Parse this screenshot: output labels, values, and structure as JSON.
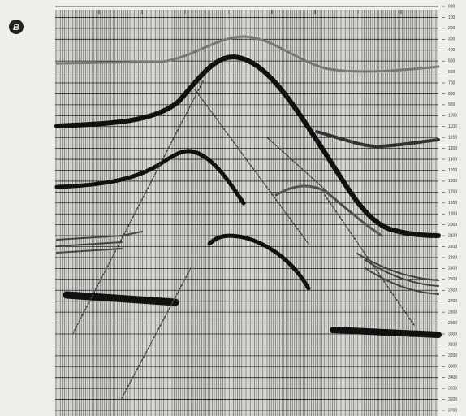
{
  "figure_label": "B",
  "depth_labels": [
    "000",
    "100",
    "200",
    "300",
    "400",
    "500",
    "600",
    "700",
    "800",
    "900",
    "1000",
    "1100",
    "1200",
    "1300",
    "1400",
    "1500",
    "1600",
    "1700",
    "1800",
    "1900",
    "2000",
    "2100",
    "2200",
    "2300",
    "2400",
    "2500",
    "2600",
    "2700",
    "2800",
    "2900",
    "3000",
    "3100",
    "3200",
    "3300",
    "3400",
    "3500",
    "3600",
    "3700"
  ]
}
